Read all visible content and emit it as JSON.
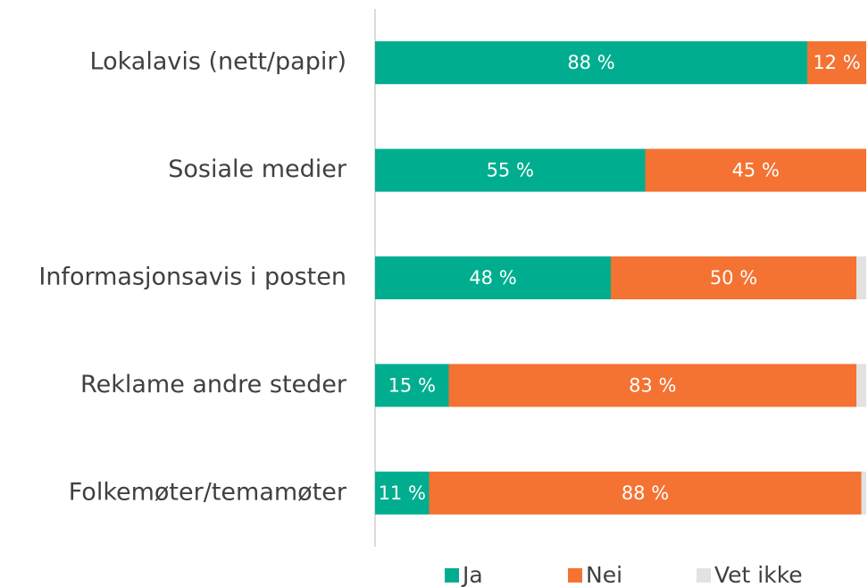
{
  "chart_data": {
    "type": "stacked-bar-horizontal",
    "categories": [
      "Lokalavis (nett/papir)",
      "Sosiale medier",
      "Informasjonsavis i posten",
      "Reklame andre steder",
      "Folkemøter/temamøter"
    ],
    "series": [
      {
        "name": "Ja",
        "color": "#00ae8f",
        "values": [
          88,
          55,
          48,
          15,
          11
        ],
        "value_labels": [
          "88 %",
          "55 %",
          "48 %",
          "15 %",
          "11 %"
        ]
      },
      {
        "name": "Nei",
        "color": "#f47232",
        "values": [
          12,
          45,
          50,
          83,
          88
        ],
        "value_labels": [
          "12 %",
          "45 %",
          "50 %",
          "83 %",
          "88 %"
        ]
      },
      {
        "name": "Vet ikke",
        "color": "#e2e2e2",
        "values": [
          0,
          0,
          2,
          2,
          1
        ]
      }
    ],
    "xlim": [
      0,
      100
    ],
    "legend": "bottom"
  }
}
